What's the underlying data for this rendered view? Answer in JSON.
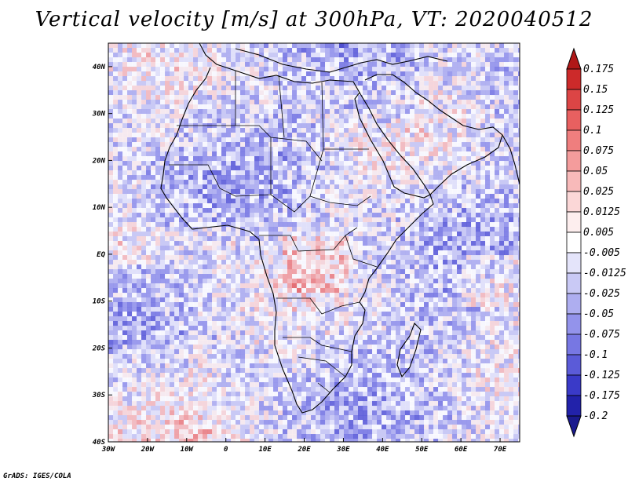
{
  "title": "Vertical velocity [m/s] at 300hPa, VT: 2020040512",
  "credit": "GrADS: IGES/COLA",
  "map": {
    "lat_labels": [
      "40N",
      "30N",
      "20N",
      "10N",
      "EQ",
      "10S",
      "20S",
      "30S",
      "40S"
    ],
    "lon_labels": [
      "30W",
      "20W",
      "10W",
      "0",
      "10E",
      "20E",
      "30E",
      "40E",
      "50E",
      "60E",
      "70E"
    ],
    "lon_range": [
      -30,
      75
    ],
    "lat_range": [
      -40,
      45
    ]
  },
  "colorbar": {
    "labels": [
      "0.175",
      "0.15",
      "0.125",
      "0.1",
      "0.075",
      "0.05",
      "0.025",
      "0.0125",
      "0.005",
      "-0.005",
      "-0.0125",
      "-0.025",
      "-0.05",
      "-0.075",
      "-0.1",
      "-0.125",
      "-0.175",
      "-0.2"
    ],
    "colors": [
      "#b01818",
      "#cc2a2a",
      "#dc4545",
      "#e86060",
      "#ef7e7e",
      "#f49c9c",
      "#f8baba",
      "#fbd7d7",
      "#fdeeee",
      "#ffffff",
      "#e4e4fa",
      "#c9c9f5",
      "#aeaef0",
      "#9393eb",
      "#7777e3",
      "#5b5bd8",
      "#3a3ac8",
      "#2222aa",
      "#1a1a8e"
    ]
  },
  "chart_data": {
    "type": "heatmap",
    "title": "Vertical velocity [m/s] at 300hPa, VT: 2020040512",
    "x_ticks": [
      "30W",
      "20W",
      "10W",
      "0",
      "10E",
      "20E",
      "30E",
      "40E",
      "50E",
      "60E",
      "70E"
    ],
    "y_ticks": [
      "40N",
      "30N",
      "20N",
      "10N",
      "EQ",
      "10S",
      "20S",
      "30S",
      "40S"
    ],
    "xlim": [
      -30,
      75
    ],
    "ylim": [
      -40,
      45
    ],
    "colorbar_levels": [
      0.175,
      0.15,
      0.125,
      0.1,
      0.075,
      0.05,
      0.025,
      0.0125,
      0.005,
      -0.005,
      -0.0125,
      -0.025,
      -0.05,
      -0.075,
      -0.1,
      -0.125,
      -0.175,
      -0.2
    ],
    "units": "m/s"
  }
}
